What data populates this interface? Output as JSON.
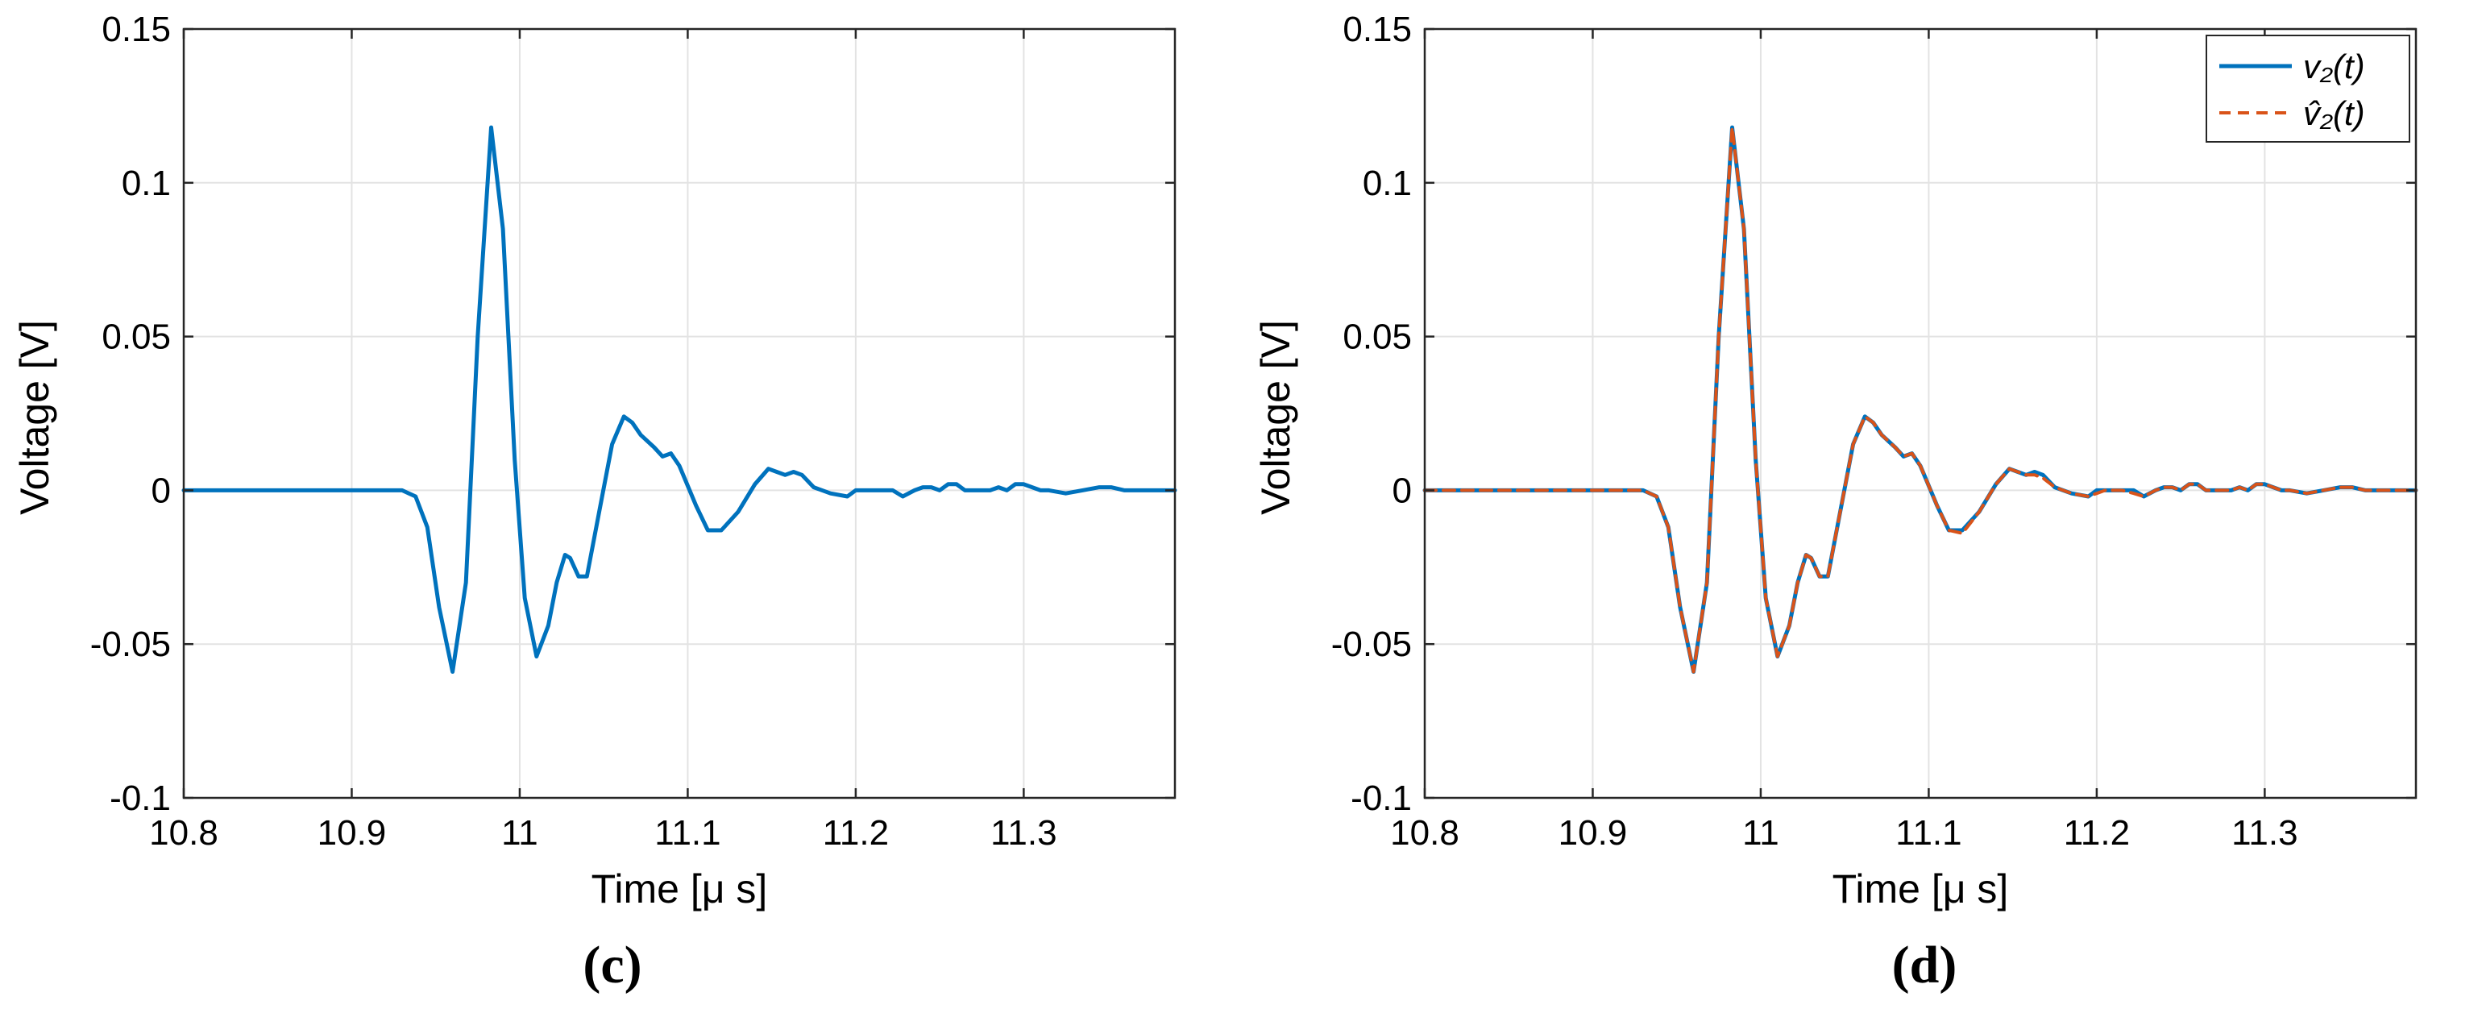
{
  "chart_data": [
    {
      "type": "line",
      "panel_label": "(c)",
      "xlabel": "Time [μ s]",
      "ylabel": "Voltage [V]",
      "xlim": [
        10.8,
        11.39
      ],
      "ylim": [
        -0.1,
        0.15
      ],
      "xticks": [
        10.8,
        10.9,
        11.0,
        11.1,
        11.2,
        11.3
      ],
      "xtick_labels": [
        "10.8",
        "10.9",
        "11",
        "11.1",
        "11.2",
        "11.3"
      ],
      "yticks": [
        -0.1,
        -0.05,
        0,
        0.05,
        0.1,
        0.15
      ],
      "ytick_labels": [
        "-0.1",
        "-0.05",
        "0",
        "0.05",
        "0.1",
        "0.15"
      ],
      "grid": true,
      "series": [
        {
          "color": "#0072BD",
          "style": "solid",
          "x": [
            10.8,
            10.93,
            10.938,
            10.945,
            10.952,
            10.96,
            10.968,
            10.975,
            10.983,
            10.99,
            10.997,
            11.003,
            11.01,
            11.017,
            11.022,
            11.027,
            11.03,
            11.035,
            11.04,
            11.048,
            11.055,
            11.062,
            11.067,
            11.072,
            11.08,
            11.085,
            11.09,
            11.095,
            11.105,
            11.112,
            11.12,
            11.13,
            11.14,
            11.148,
            11.153,
            11.158,
            11.163,
            11.168,
            11.175,
            11.185,
            11.195,
            11.2,
            11.205,
            11.215,
            11.222,
            11.228,
            11.235,
            11.24,
            11.245,
            11.25,
            11.255,
            11.26,
            11.265,
            11.272,
            11.28,
            11.285,
            11.29,
            11.295,
            11.3,
            11.305,
            11.31,
            11.315,
            11.325,
            11.335,
            11.345,
            11.352,
            11.36,
            11.37,
            11.39
          ],
          "y": [
            0,
            0,
            -0.002,
            -0.012,
            -0.038,
            -0.059,
            -0.03,
            0.05,
            0.118,
            0.085,
            0.01,
            -0.035,
            -0.054,
            -0.044,
            -0.03,
            -0.021,
            -0.022,
            -0.028,
            -0.028,
            -0.005,
            0.015,
            0.024,
            0.022,
            0.018,
            0.014,
            0.011,
            0.012,
            0.008,
            -0.005,
            -0.013,
            -0.013,
            -0.007,
            0.002,
            0.007,
            0.006,
            0.005,
            0.006,
            0.005,
            0.001,
            -0.001,
            -0.002,
            0,
            0,
            0,
            0,
            -0.002,
            0,
            0.001,
            0.001,
            0,
            0.002,
            0.002,
            0,
            0,
            0,
            0.001,
            0,
            0.002,
            0.002,
            0.001,
            0,
            0,
            -0.001,
            0,
            0.001,
            0.001,
            0,
            0,
            0
          ]
        }
      ]
    },
    {
      "type": "line",
      "panel_label": "(d)",
      "xlabel": "Time [μ s]",
      "ylabel": "Voltage [V]",
      "xlim": [
        10.8,
        11.39
      ],
      "ylim": [
        -0.1,
        0.15
      ],
      "xticks": [
        10.8,
        10.9,
        11.0,
        11.1,
        11.2,
        11.3
      ],
      "xtick_labels": [
        "10.8",
        "10.9",
        "11",
        "11.1",
        "11.2",
        "11.3"
      ],
      "yticks": [
        -0.1,
        -0.05,
        0,
        0.05,
        0.1,
        0.15
      ],
      "ytick_labels": [
        "-0.1",
        "-0.05",
        "0",
        "0.05",
        "0.1",
        "0.15"
      ],
      "grid": true,
      "legend_position": "top-right",
      "series": [
        {
          "name": "v₂(t)",
          "color": "#0072BD",
          "style": "solid",
          "x": [
            10.8,
            10.93,
            10.938,
            10.945,
            10.952,
            10.96,
            10.968,
            10.975,
            10.983,
            10.99,
            10.997,
            11.003,
            11.01,
            11.017,
            11.022,
            11.027,
            11.03,
            11.035,
            11.04,
            11.048,
            11.055,
            11.062,
            11.067,
            11.072,
            11.08,
            11.085,
            11.09,
            11.095,
            11.105,
            11.112,
            11.12,
            11.13,
            11.14,
            11.148,
            11.153,
            11.158,
            11.163,
            11.168,
            11.175,
            11.185,
            11.195,
            11.2,
            11.205,
            11.215,
            11.222,
            11.228,
            11.235,
            11.24,
            11.245,
            11.25,
            11.255,
            11.26,
            11.265,
            11.272,
            11.28,
            11.285,
            11.29,
            11.295,
            11.3,
            11.305,
            11.31,
            11.315,
            11.325,
            11.335,
            11.345,
            11.352,
            11.36,
            11.37,
            11.39
          ],
          "y": [
            0,
            0,
            -0.002,
            -0.012,
            -0.038,
            -0.059,
            -0.03,
            0.05,
            0.118,
            0.085,
            0.01,
            -0.035,
            -0.054,
            -0.044,
            -0.03,
            -0.021,
            -0.022,
            -0.028,
            -0.028,
            -0.005,
            0.015,
            0.024,
            0.022,
            0.018,
            0.014,
            0.011,
            0.012,
            0.008,
            -0.005,
            -0.013,
            -0.013,
            -0.007,
            0.002,
            0.007,
            0.006,
            0.005,
            0.006,
            0.005,
            0.001,
            -0.001,
            -0.002,
            0,
            0,
            0,
            0,
            -0.002,
            0,
            0.001,
            0.001,
            0,
            0.002,
            0.002,
            0,
            0,
            0,
            0.001,
            0,
            0.002,
            0.002,
            0.001,
            0,
            0,
            -0.001,
            0,
            0.001,
            0.001,
            0,
            0,
            0
          ]
        },
        {
          "name": "v̂₂(t)",
          "color": "#D95319",
          "style": "dashed",
          "x": [
            10.8,
            10.93,
            10.938,
            10.945,
            10.952,
            10.96,
            10.968,
            10.975,
            10.983,
            10.99,
            10.997,
            11.003,
            11.01,
            11.017,
            11.022,
            11.027,
            11.03,
            11.035,
            11.04,
            11.048,
            11.055,
            11.062,
            11.067,
            11.072,
            11.08,
            11.085,
            11.09,
            11.095,
            11.105,
            11.112,
            11.12,
            11.13,
            11.14,
            11.148,
            11.153,
            11.158,
            11.163,
            11.168,
            11.175,
            11.185,
            11.195,
            11.2,
            11.205,
            11.215,
            11.222,
            11.228,
            11.235,
            11.24,
            11.245,
            11.25,
            11.255,
            11.26,
            11.265,
            11.272,
            11.28,
            11.285,
            11.29,
            11.295,
            11.3,
            11.305,
            11.31,
            11.315,
            11.325,
            11.335,
            11.345,
            11.352,
            11.36,
            11.37,
            11.39
          ],
          "y": [
            0,
            0,
            -0.002,
            -0.012,
            -0.038,
            -0.059,
            -0.03,
            0.05,
            0.118,
            0.085,
            0.01,
            -0.035,
            -0.054,
            -0.044,
            -0.03,
            -0.021,
            -0.022,
            -0.028,
            -0.028,
            -0.005,
            0.015,
            0.024,
            0.022,
            0.018,
            0.014,
            0.011,
            0.012,
            0.008,
            -0.005,
            -0.013,
            -0.014,
            -0.007,
            0.002,
            0.007,
            0.006,
            0.005,
            0.005,
            0.004,
            0.001,
            -0.001,
            -0.002,
            -0.001,
            0,
            0,
            -0.001,
            -0.002,
            0,
            0.001,
            0.001,
            0,
            0.002,
            0.002,
            0,
            0,
            0,
            0.001,
            0,
            0.002,
            0.002,
            0.001,
            0,
            0,
            -0.001,
            0,
            0.001,
            0.001,
            0,
            0,
            0
          ]
        }
      ]
    }
  ]
}
